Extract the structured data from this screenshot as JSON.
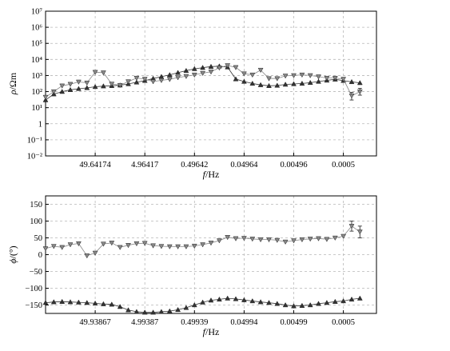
{
  "chart_data": [
    {
      "type": "line",
      "panel": "top",
      "xlabel_parts": [
        "f",
        "/Hz"
      ],
      "ylabel_parts": [
        "ρ",
        "/Ωm"
      ],
      "y_scale": "log",
      "ylim": [
        0.01,
        10000000
      ],
      "y_ticks": [
        {
          "value": 0.01,
          "label": "10⁻²"
        },
        {
          "value": 0.1,
          "label": "10⁻¹"
        },
        {
          "value": 1,
          "label": "1"
        },
        {
          "value": 10,
          "label": "10¹"
        },
        {
          "value": 100,
          "label": "10²"
        },
        {
          "value": 1000,
          "label": "10³"
        },
        {
          "value": 10000,
          "label": "10⁴"
        },
        {
          "value": 100000,
          "label": "10⁵"
        },
        {
          "value": 1000000,
          "label": "10⁶"
        },
        {
          "value": 10000000,
          "label": "10⁷"
        }
      ],
      "x_range": [
        0,
        40
      ],
      "x_ticks": [
        {
          "pos": 6,
          "label": "49.64174"
        },
        {
          "pos": 12,
          "label": "4.96417"
        },
        {
          "pos": 18,
          "label": "0.49642"
        },
        {
          "pos": 24,
          "label": "0.04964"
        },
        {
          "pos": 30,
          "label": "0.00496"
        },
        {
          "pos": 36,
          "label": "0.0005"
        }
      ],
      "grid": true,
      "legend": "none",
      "series": [
        {
          "marker": "triangle-up",
          "color": "#333333",
          "points": [
            [
              0,
              30
            ],
            [
              1,
              70
            ],
            [
              2,
              100
            ],
            [
              3,
              130
            ],
            [
              4,
              150
            ],
            [
              5,
              170
            ],
            [
              6,
              200
            ],
            [
              7,
              220
            ],
            [
              8,
              230
            ],
            [
              9,
              250
            ],
            [
              10,
              300
            ],
            [
              11,
              380
            ],
            [
              12,
              480
            ],
            [
              13,
              650
            ],
            [
              14,
              850
            ],
            [
              15,
              1100
            ],
            [
              16,
              1500
            ],
            [
              17,
              2000
            ],
            [
              18,
              2600
            ],
            [
              19,
              3100
            ],
            [
              20,
              3600
            ],
            [
              21,
              3800
            ],
            [
              22,
              3300
            ],
            [
              23,
              600
            ],
            [
              24,
              420
            ],
            [
              25,
              320
            ],
            [
              26,
              260
            ],
            [
              27,
              230
            ],
            [
              28,
              240
            ],
            [
              29,
              280
            ],
            [
              30,
              300
            ],
            [
              31,
              320
            ],
            [
              32,
              360
            ],
            [
              33,
              420
            ],
            [
              34,
              500
            ],
            [
              35,
              580
            ],
            [
              36,
              480
            ],
            [
              37,
              400
            ],
            [
              38,
              350
            ]
          ]
        },
        {
          "marker": "triangle-down",
          "color": "#888888",
          "points": [
            [
              0,
              45
            ],
            [
              1,
              100
            ],
            [
              2,
              230
            ],
            [
              3,
              290
            ],
            [
              4,
              400
            ],
            [
              5,
              350
            ],
            [
              6,
              1600
            ],
            [
              7,
              1500
            ],
            [
              8,
              300
            ],
            [
              9,
              250
            ],
            [
              10,
              420
            ],
            [
              11,
              700
            ],
            [
              12,
              600
            ],
            [
              13,
              420
            ],
            [
              14,
              500
            ],
            [
              15,
              580
            ],
            [
              16,
              750
            ],
            [
              17,
              900
            ],
            [
              18,
              1100
            ],
            [
              19,
              1400
            ],
            [
              20,
              1700
            ],
            [
              21,
              3000
            ],
            [
              22,
              4200
            ],
            [
              23,
              3200
            ],
            [
              24,
              1300
            ],
            [
              25,
              1100
            ],
            [
              26,
              2200
            ],
            [
              27,
              650
            ],
            [
              28,
              650
            ],
            [
              29,
              950
            ],
            [
              30,
              1000
            ],
            [
              31,
              1100
            ],
            [
              32,
              1000
            ],
            [
              33,
              850
            ],
            [
              34,
              700
            ],
            [
              35,
              700
            ],
            [
              36,
              600
            ],
            [
              37,
              55
            ],
            [
              38,
              100
            ]
          ],
          "error_bars": [
            [
              37,
              30,
              90
            ],
            [
              38,
              60,
              160
            ]
          ]
        }
      ]
    },
    {
      "type": "line",
      "panel": "bottom",
      "xlabel_parts": [
        "f",
        "/Hz"
      ],
      "ylabel_parts": [
        "ϕ",
        "/(°)"
      ],
      "ylim": [
        -175,
        175
      ],
      "y_ticks": [
        {
          "value": -150,
          "label": "−150"
        },
        {
          "value": -100,
          "label": "−100"
        },
        {
          "value": -50,
          "label": "−50"
        },
        {
          "value": 0,
          "label": "0"
        },
        {
          "value": 50,
          "label": "50"
        },
        {
          "value": 100,
          "label": "100"
        },
        {
          "value": 150,
          "label": "150"
        }
      ],
      "x_range": [
        0,
        40
      ],
      "x_ticks": [
        {
          "pos": 6,
          "label": "49.93867"
        },
        {
          "pos": 12,
          "label": "4.99387"
        },
        {
          "pos": 18,
          "label": "0.49939"
        },
        {
          "pos": 24,
          "label": "0.04994"
        },
        {
          "pos": 30,
          "label": "0.00499"
        },
        {
          "pos": 36,
          "label": "0.0005"
        }
      ],
      "grid": true,
      "legend": "none",
      "series": [
        {
          "marker": "triangle-down",
          "color": "#888888",
          "points": [
            [
              0,
              18
            ],
            [
              1,
              25
            ],
            [
              2,
              22
            ],
            [
              3,
              30
            ],
            [
              4,
              33
            ],
            [
              5,
              -3
            ],
            [
              6,
              5
            ],
            [
              7,
              32
            ],
            [
              8,
              35
            ],
            [
              9,
              22
            ],
            [
              10,
              28
            ],
            [
              11,
              33
            ],
            [
              12,
              34
            ],
            [
              13,
              27
            ],
            [
              14,
              25
            ],
            [
              15,
              24
            ],
            [
              16,
              24
            ],
            [
              17,
              24
            ],
            [
              18,
              26
            ],
            [
              19,
              30
            ],
            [
              20,
              35
            ],
            [
              21,
              42
            ],
            [
              22,
              52
            ],
            [
              23,
              48
            ],
            [
              24,
              49
            ],
            [
              25,
              47
            ],
            [
              26,
              45
            ],
            [
              27,
              45
            ],
            [
              28,
              43
            ],
            [
              29,
              38
            ],
            [
              30,
              42
            ],
            [
              31,
              45
            ],
            [
              32,
              47
            ],
            [
              33,
              48
            ],
            [
              34,
              46
            ],
            [
              35,
              50
            ],
            [
              36,
              55
            ],
            [
              37,
              85
            ],
            [
              38,
              68
            ]
          ],
          "error_bars": [
            [
              37,
              70,
              100
            ],
            [
              38,
              50,
              85
            ]
          ]
        },
        {
          "marker": "triangle-up",
          "color": "#333333",
          "points": [
            [
              0,
              -143
            ],
            [
              1,
              -141
            ],
            [
              2,
              -140
            ],
            [
              3,
              -141
            ],
            [
              4,
              -142
            ],
            [
              5,
              -143
            ],
            [
              6,
              -145
            ],
            [
              7,
              -147
            ],
            [
              8,
              -148
            ],
            [
              9,
              -155
            ],
            [
              10,
              -165
            ],
            [
              11,
              -170
            ],
            [
              12,
              -172
            ],
            [
              13,
              -172
            ],
            [
              14,
              -170
            ],
            [
              15,
              -168
            ],
            [
              16,
              -164
            ],
            [
              17,
              -158
            ],
            [
              18,
              -150
            ],
            [
              19,
              -142
            ],
            [
              20,
              -136
            ],
            [
              21,
              -133
            ],
            [
              22,
              -130
            ],
            [
              23,
              -132
            ],
            [
              24,
              -135
            ],
            [
              25,
              -138
            ],
            [
              26,
              -141
            ],
            [
              27,
              -143
            ],
            [
              28,
              -146
            ],
            [
              29,
              -150
            ],
            [
              30,
              -153
            ],
            [
              31,
              -152
            ],
            [
              32,
              -150
            ],
            [
              33,
              -146
            ],
            [
              34,
              -143
            ],
            [
              35,
              -140
            ],
            [
              36,
              -138
            ],
            [
              37,
              -133
            ],
            [
              38,
              -130
            ]
          ]
        }
      ]
    }
  ]
}
